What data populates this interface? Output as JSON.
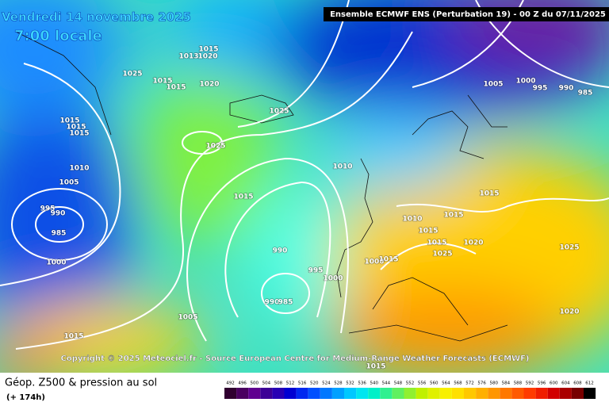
{
  "header": {
    "date": "Vendredi 14 novembre 2025",
    "time": "7:00 locale",
    "model": "Ensemble ECMWF ENS  (Perturbation 19)  - 00 Z du 07/11/2025"
  },
  "copyright": "Copyright © 2025 Meteociel.fr - Source European Centre for Medium-Range Weather Forecasts (ECMWF)",
  "footer": {
    "title": "Géop. Z500 & pression au sol",
    "lead": "(+ 174h)"
  },
  "isobar_labels": [
    1015,
    1013,
    1020,
    1025,
    1015,
    1015,
    1020,
    1025,
    1025,
    1015,
    1015,
    1015,
    1010,
    1005,
    995,
    990,
    985,
    1000,
    1015,
    990,
    995,
    1000,
    990,
    985,
    1005,
    1015,
    1010,
    1010,
    1015,
    1015,
    1015,
    1020,
    1025,
    1025,
    1020,
    1015,
    1005,
    1000,
    995,
    990,
    985,
    1000,
    1015,
    1015
  ],
  "legend": {
    "levels": [
      492,
      496,
      500,
      504,
      508,
      512,
      516,
      520,
      524,
      528,
      532,
      536,
      540,
      544,
      548,
      552,
      556,
      560,
      564,
      568,
      572,
      576,
      580,
      584,
      588,
      592,
      596,
      600,
      604,
      608,
      612
    ],
    "colors": [
      "#300030",
      "#4a0060",
      "#600090",
      "#3c0096",
      "#2800b4",
      "#0000d2",
      "#0028f0",
      "#0050ff",
      "#0078ff",
      "#00a0ff",
      "#00c8ff",
      "#00e6f0",
      "#00f0c8",
      "#30f090",
      "#60f060",
      "#90f030",
      "#c0f000",
      "#e0f000",
      "#f8f000",
      "#ffe000",
      "#ffc800",
      "#ffb000",
      "#ff9600",
      "#ff7800",
      "#ff5a00",
      "#ff3c00",
      "#f01e00",
      "#d20000",
      "#aa0000",
      "#780000",
      "#000000"
    ]
  }
}
